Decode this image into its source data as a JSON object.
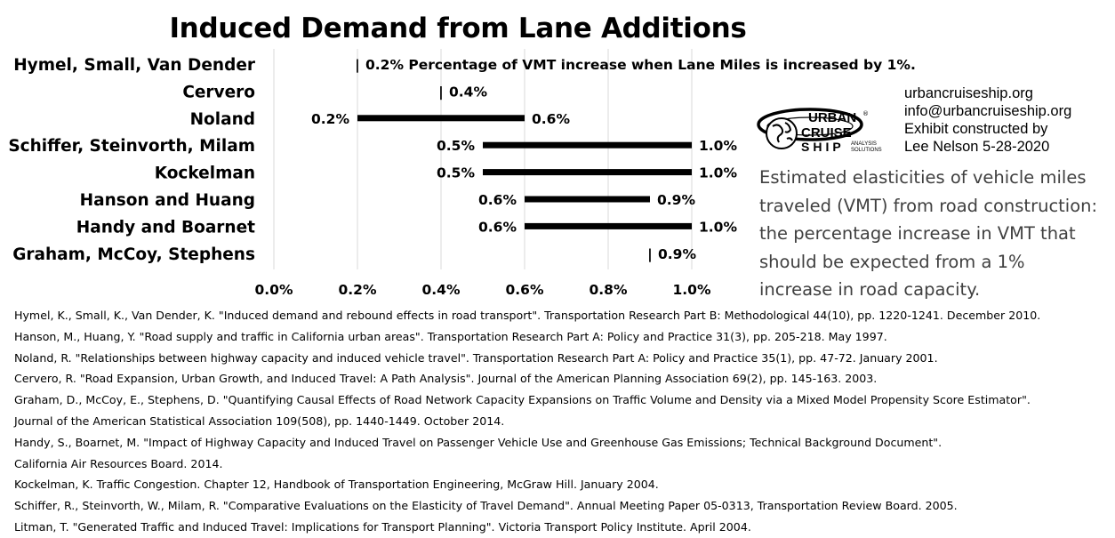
{
  "chart_data": {
    "type": "bar",
    "subtype": "floating-range",
    "title": "Induced Demand from Lane Additions",
    "categories": [
      "Hymel, Small, Van Dender",
      "Cervero",
      "Noland",
      "Schiffer, Steinvorth, Milam",
      "Kockelman",
      "Hanson and Huang",
      "Handy and Boarnet",
      "Graham, McCoy, Stephens"
    ],
    "ranges": [
      {
        "low": 0.2,
        "high": 0.2,
        "low_label": "",
        "high_label": "0.2% Percentage of VMT increase when Lane Miles is increased by 1%."
      },
      {
        "low": 0.4,
        "high": 0.4,
        "low_label": "",
        "high_label": "0.4%"
      },
      {
        "low": 0.2,
        "high": 0.6,
        "low_label": "0.2%",
        "high_label": "0.6%"
      },
      {
        "low": 0.5,
        "high": 1.0,
        "low_label": "0.5%",
        "high_label": "1.0%"
      },
      {
        "low": 0.5,
        "high": 1.0,
        "low_label": "0.5%",
        "high_label": "1.0%"
      },
      {
        "low": 0.6,
        "high": 0.9,
        "low_label": "0.6%",
        "high_label": "0.9%"
      },
      {
        "low": 0.6,
        "high": 1.0,
        "low_label": "0.6%",
        "high_label": "1.0%"
      },
      {
        "low": 0.9,
        "high": 0.9,
        "low_label": "",
        "high_label": "0.9%"
      }
    ],
    "point_marker": "|",
    "xlim": [
      0,
      1.0
    ],
    "xticks": [
      0,
      0.2,
      0.4,
      0.6,
      0.8,
      1.0
    ],
    "xtick_labels": [
      "0.0%",
      "0.2%",
      "0.4%",
      "0.6%",
      "0.8%",
      "1.0%"
    ],
    "grid": true,
    "legend": "none",
    "bar_color": "#000000",
    "grid_color": "#d9d9d9"
  },
  "contact": [
    "urbancruiseship.org",
    "info@urbancruiseship.org",
    "Exhibit constructed by",
    "Lee Nelson 5-28-2020"
  ],
  "logo": {
    "line1": "URBAN",
    "line2": "CRUISE",
    "line3": "SHIP",
    "tag1": "ANALYSIS",
    "tag2": "SOLUTIONS"
  },
  "description": "Estimated elasticities of vehicle miles traveled (VMT) from road construction: the percentage increase in VMT that should be expected from a 1% increase in road capacity.",
  "references": [
    "Hymel, K., Small, K., Van Dender, K. \"Induced demand and rebound effects in road transport\". Transportation Research Part B: Methodological 44(10), pp. 1220-1241. December 2010.",
    "Hanson, M., Huang, Y. \"Road supply and traffic in California urban areas\". Transportation Research Part A: Policy and Practice 31(3), pp. 205-218. May 1997.",
    "Noland, R. \"Relationships between highway capacity and induced vehicle travel\". Transportation Research Part A: Policy and Practice 35(1), pp. 47-72. January 2001.",
    "Cervero, R. \"Road Expansion, Urban Growth, and Induced Travel: A Path Analysis\". Journal of the American Planning Association 69(2), pp. 145-163. 2003.",
    "Graham, D., McCoy, E., Stephens, D. \"Quantifying Causal Effects of Road Network Capacity Expansions on Traffic Volume and Density via a Mixed Model Propensity Score Estimator\".",
    "Journal of the American Statistical Association 109(508), pp. 1440-1449. October 2014.",
    "Handy, S., Boarnet, M. \"Impact of Highway Capacity and Induced Travel on Passenger Vehicle Use and Greenhouse Gas Emissions; Technical Background Document\".",
    "California Air Resources Board. 2014.",
    "Kockelman, K. Traffic Congestion. Chapter 12, Handbook of Transportation Engineering, McGraw Hill. January 2004.",
    "Schiffer, R., Steinvorth, W., Milam, R. \"Comparative Evaluations on the Elasticity of Travel Demand\". Annual Meeting Paper 05-0313, Transportation Review Board. 2005.",
    "Litman, T. \"Generated Traffic and Induced Travel: Implications for Transport Planning\". Victoria Transport Policy Institute. April 2004."
  ]
}
